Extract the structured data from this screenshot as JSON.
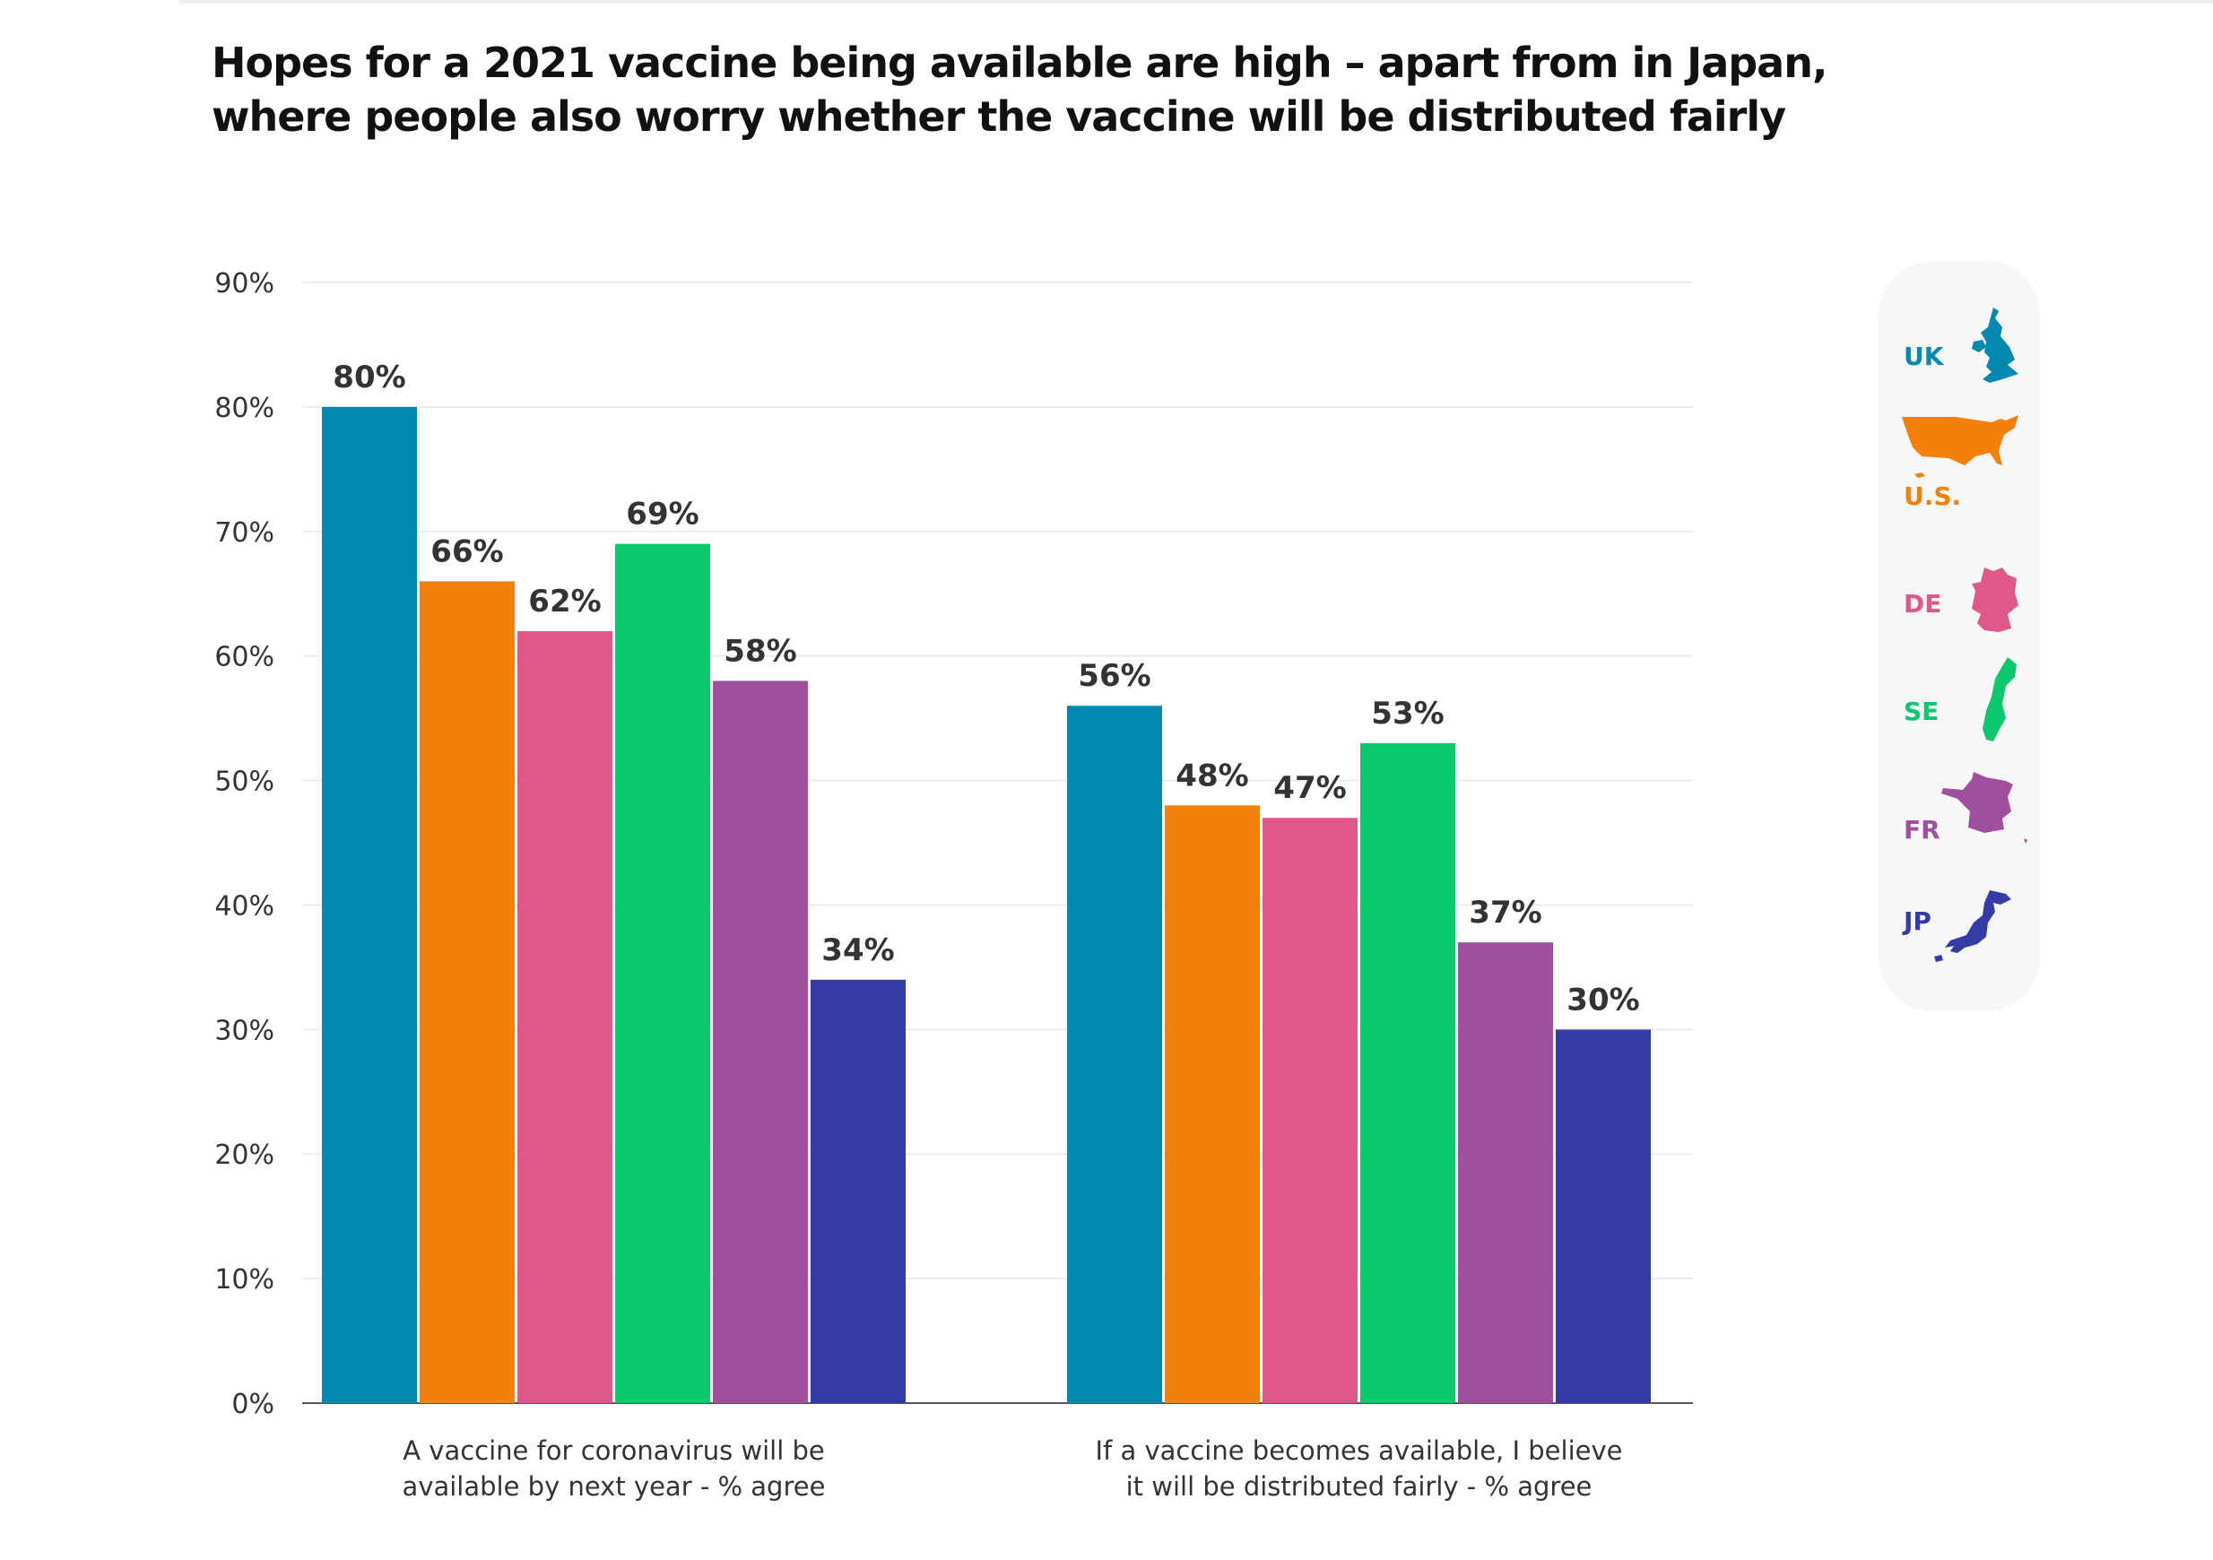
{
  "title": "Hopes for a 2021 vaccine being available are high – apart from in Japan, where people also worry whether the vaccine will be distributed fairly",
  "legend": [
    {
      "label": "UK",
      "color": "#0089b0",
      "icon": "uk-map-icon"
    },
    {
      "label": "U.S.",
      "color": "#f38109",
      "icon": "us-map-icon"
    },
    {
      "label": "DE",
      "color": "#e0588a",
      "icon": "germany-map-icon"
    },
    {
      "label": "SE",
      "color": "#0cc86c",
      "icon": "sweden-map-icon"
    },
    {
      "label": "FR",
      "color": "#a04f9e",
      "icon": "france-map-icon"
    },
    {
      "label": "JP",
      "color": "#353ba6",
      "icon": "japan-map-icon"
    }
  ],
  "chart_data": {
    "type": "bar",
    "title": "Hopes for a 2021 vaccine being available are high – apart from in Japan, where people also worry whether the vaccine will be distributed fairly",
    "categories": [
      "A vaccine for coronavirus will be available by next year - % agree",
      "If a vaccine becomes available, I believe it will be distributed  fairly - % agree"
    ],
    "category_lines": [
      [
        "A vaccine for coronavirus will be",
        "available by next year - % agree"
      ],
      [
        "If a vaccine becomes available, I believe",
        "it will be distributed  fairly - % agree"
      ]
    ],
    "series": [
      {
        "name": "UK",
        "color": "#0089b0",
        "values": [
          80,
          56
        ]
      },
      {
        "name": "U.S.",
        "color": "#f38109",
        "values": [
          66,
          48
        ]
      },
      {
        "name": "DE",
        "color": "#e0588a",
        "values": [
          62,
          47
        ]
      },
      {
        "name": "SE",
        "color": "#0cc86c",
        "values": [
          69,
          53
        ]
      },
      {
        "name": "FR",
        "color": "#a04f9e",
        "values": [
          58,
          37
        ]
      },
      {
        "name": "JP",
        "color": "#353ba6",
        "values": [
          34,
          30
        ]
      }
    ],
    "ylim": [
      0,
      90
    ],
    "yticks": [
      0,
      10,
      20,
      30,
      40,
      50,
      60,
      70,
      80,
      90
    ],
    "ytick_labels": [
      "0%",
      "10%",
      "20%",
      "30%",
      "40%",
      "50%",
      "60%",
      "70%",
      "80%",
      "90%"
    ],
    "value_suffix": "%",
    "grid": true,
    "legend_position": "right",
    "xlabel": "",
    "ylabel": ""
  }
}
